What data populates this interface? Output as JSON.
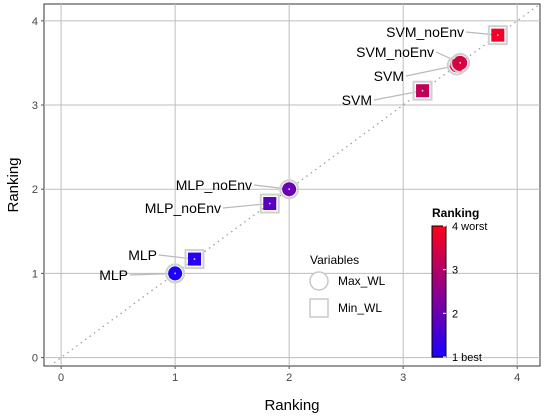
{
  "chart_data": {
    "type": "scatter",
    "xlabel": "Ranking",
    "ylabel": "Ranking",
    "xlim": [
      -0.15,
      4.2
    ],
    "ylim": [
      -0.1,
      4.2
    ],
    "x_ticks": [
      0,
      1,
      2,
      3,
      4
    ],
    "y_ticks": [
      0,
      1,
      2,
      3,
      4
    ],
    "grid": true,
    "reference_line": "y = x (dotted)",
    "series": [
      {
        "name": "Max_WL",
        "marker": "circle",
        "points": [
          {
            "label": "MLP",
            "x": 1.0,
            "y": 1.0,
            "rank": 1.0
          },
          {
            "label": "MLP_noEnv",
            "x": 2.0,
            "y": 2.0,
            "rank": 2.0
          },
          {
            "label": "SVM",
            "x": 3.47,
            "y": 3.47,
            "rank": 3.47
          },
          {
            "label": "SVM_noEnv",
            "x": 3.5,
            "y": 3.5,
            "rank": 3.5
          }
        ]
      },
      {
        "name": "Min_WL",
        "marker": "square",
        "points": [
          {
            "label": "MLP",
            "x": 1.17,
            "y": 1.17,
            "rank": 1.17
          },
          {
            "label": "MLP_noEnv",
            "x": 1.83,
            "y": 1.83,
            "rank": 1.83
          },
          {
            "label": "SVM",
            "x": 3.17,
            "y": 3.17,
            "rank": 3.17
          },
          {
            "label": "SVM_noEnv",
            "x": 3.83,
            "y": 3.83,
            "rank": 3.83
          }
        ]
      }
    ],
    "shape_legend": {
      "title": "Variables",
      "items": [
        {
          "label": "Max_WL",
          "shape": "circle"
        },
        {
          "label": "Min_WL",
          "shape": "square"
        }
      ],
      "placement": "bottom-right"
    },
    "color_legend": {
      "title": "Ranking",
      "range": [
        1,
        4
      ],
      "tick_labels": [
        "1 best",
        "2",
        "3",
        "4 worst"
      ],
      "color_low": "#1c00ff",
      "color_high": "#ff001a",
      "placement": "bottom-right"
    }
  }
}
